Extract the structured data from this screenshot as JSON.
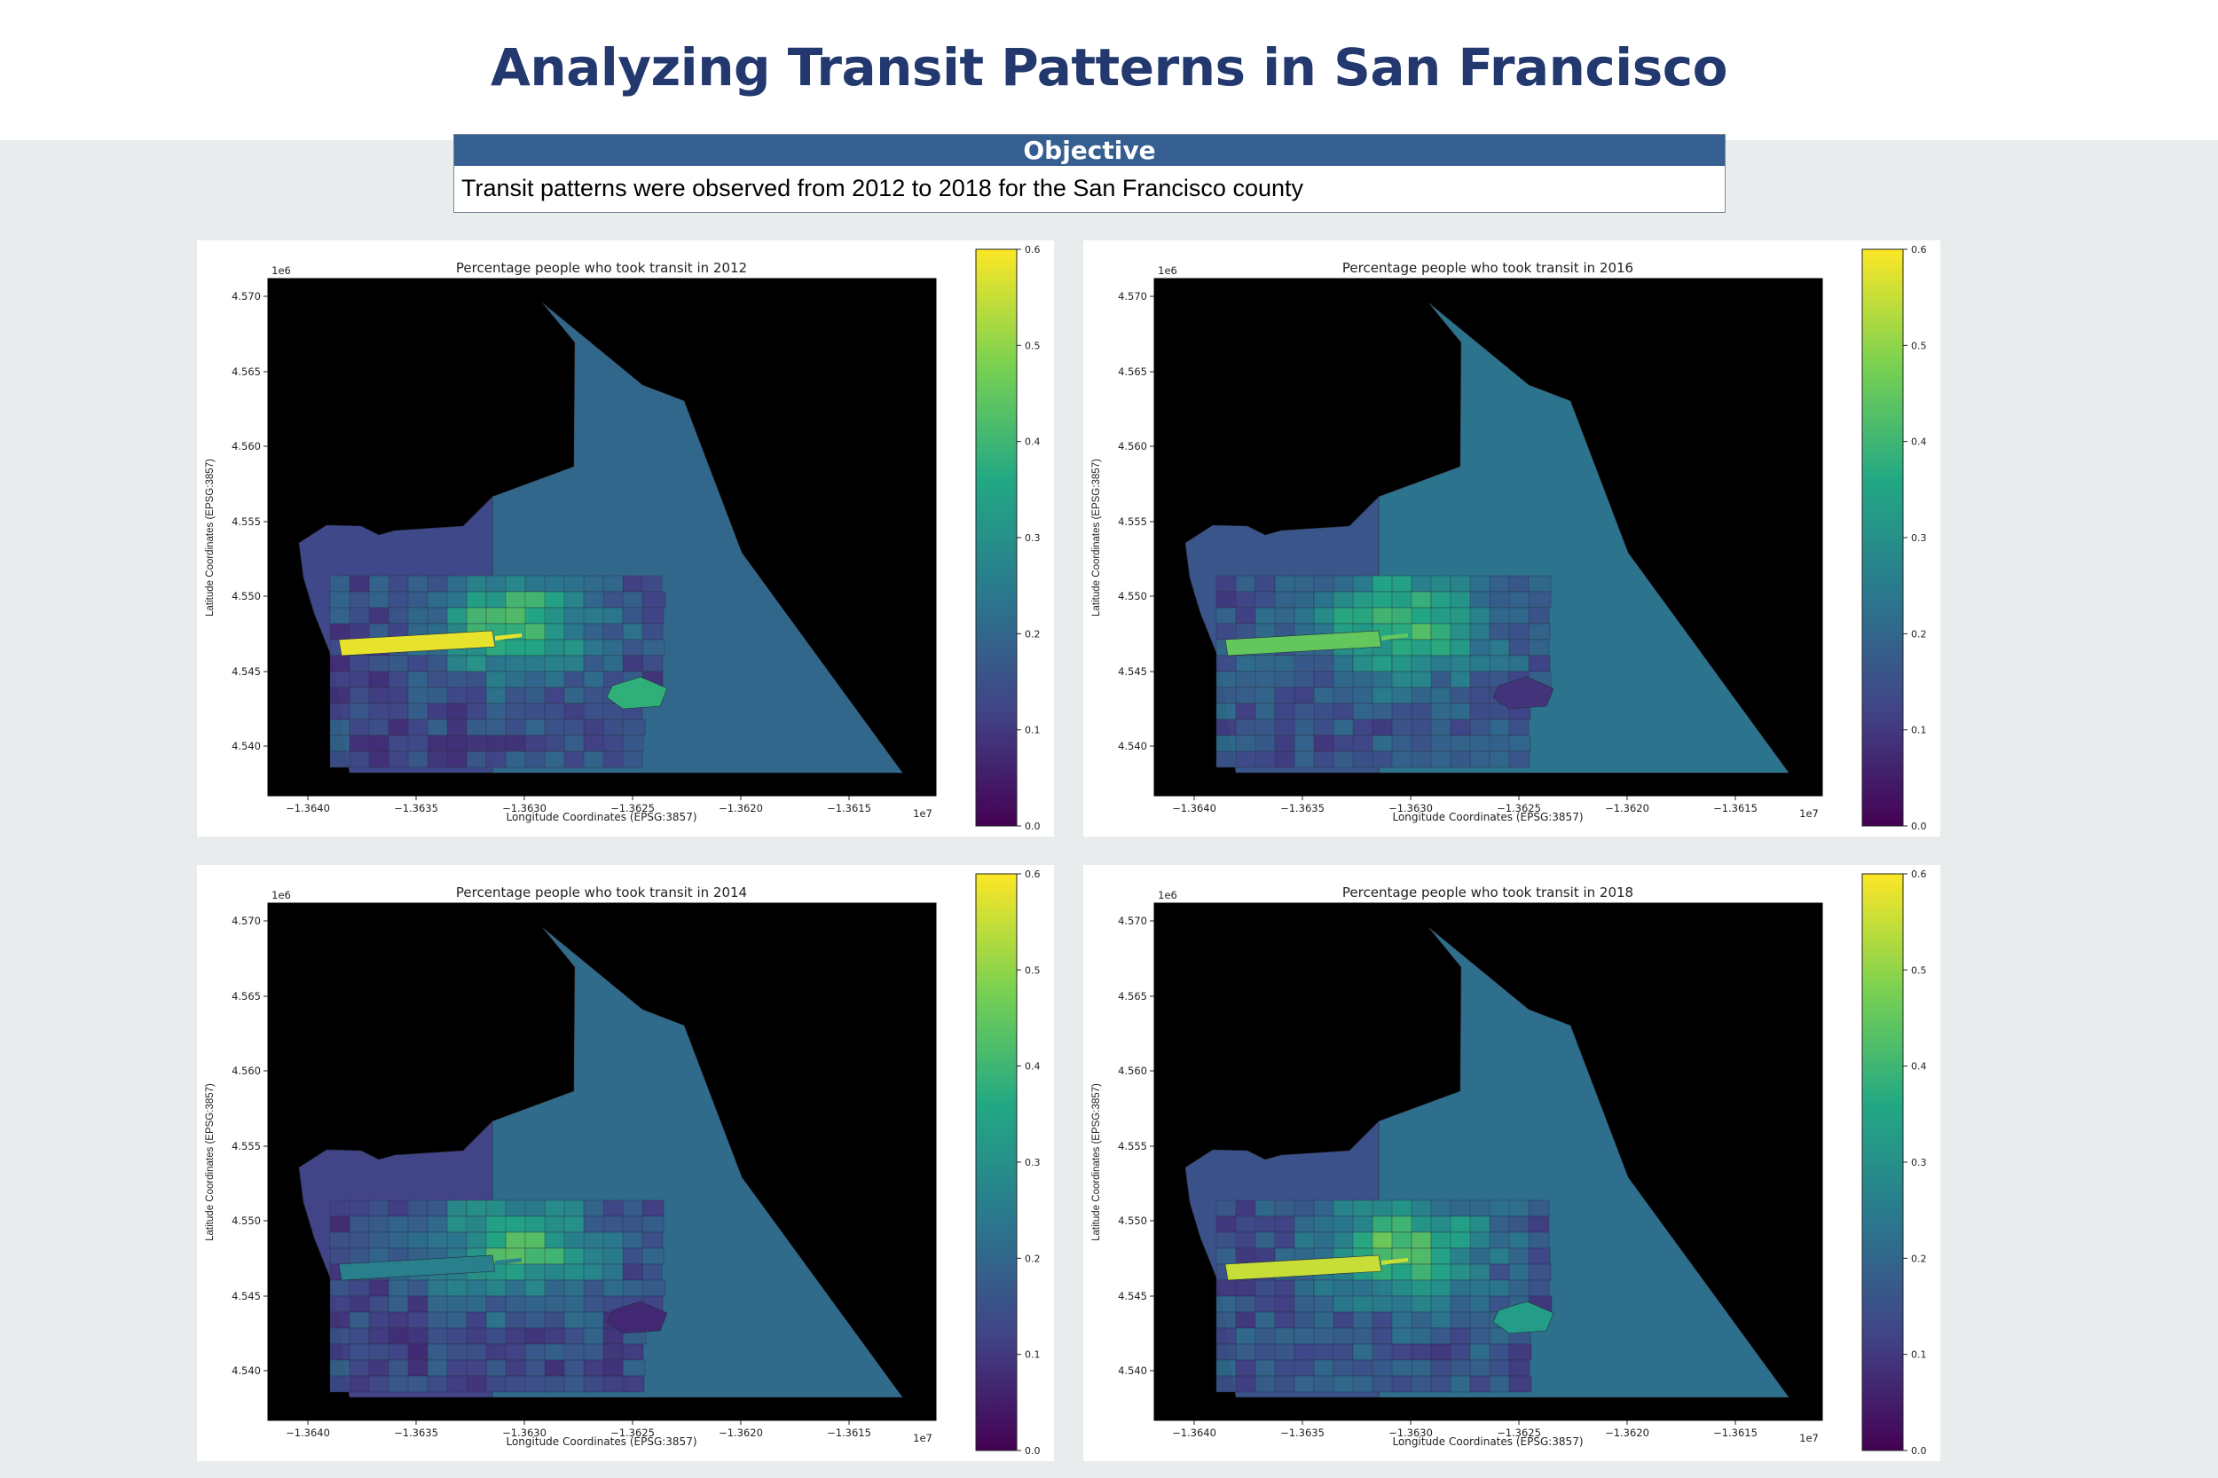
{
  "title": "Analyzing Transit Patterns in San Francisco",
  "objective": {
    "heading": "Objective",
    "text": "Transit patterns were observed from 2012 to 2018 for the San Francisco county"
  },
  "colormap": {
    "name": "viridis",
    "stops": [
      "#440154",
      "#414487",
      "#2a788e",
      "#22a884",
      "#7ad151",
      "#fde725"
    ]
  },
  "map_axes": {
    "xlabel": "Longitude Coordinates (EPSG:3857)",
    "ylabel": "Latitude Coordinates (EPSG:3857)",
    "x_exponent": "1e7",
    "y_exponent": "1e6",
    "x_ticks": [
      "−1.3640",
      "−1.3635",
      "−1.3630",
      "−1.3625",
      "−1.3620",
      "−1.3615"
    ],
    "y_ticks": [
      "4.570",
      "4.565",
      "4.560",
      "4.555",
      "4.550",
      "4.545",
      "4.540"
    ],
    "colorbar_ticks": [
      "0.6",
      "0.5",
      "0.4",
      "0.3",
      "0.2",
      "0.1",
      "0.0"
    ],
    "colorbar_range": [
      0.0,
      0.6
    ]
  },
  "maps": [
    {
      "year": "2012",
      "title": "Percentage people who took transit in 2012",
      "ocean_value": 0.2,
      "west_value": 0.13,
      "park_value": 0.58,
      "southeast_value": 0.38
    },
    {
      "year": "2016",
      "title": "Percentage people who took transit in 2016",
      "ocean_value": 0.23,
      "west_value": 0.16,
      "park_value": 0.45,
      "southeast_value": 0.09
    },
    {
      "year": "2014",
      "title": "Percentage people who took transit in 2014",
      "ocean_value": 0.21,
      "west_value": 0.12,
      "park_value": 0.26,
      "southeast_value": 0.07
    },
    {
      "year": "2018",
      "title": "Percentage people who took transit in 2018",
      "ocean_value": 0.22,
      "west_value": 0.15,
      "park_value": 0.55,
      "southeast_value": 0.33
    }
  ]
}
